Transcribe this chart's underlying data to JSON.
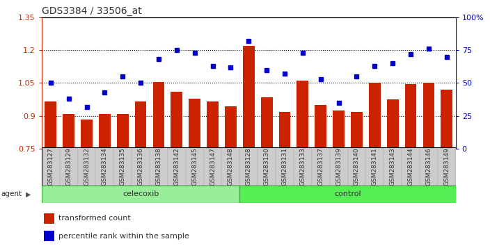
{
  "title": "GDS3384 / 33506_at",
  "samples": [
    "GSM283127",
    "GSM283129",
    "GSM283132",
    "GSM283134",
    "GSM283135",
    "GSM283136",
    "GSM283138",
    "GSM283142",
    "GSM283145",
    "GSM283147",
    "GSM283148",
    "GSM283128",
    "GSM283130",
    "GSM283131",
    "GSM283133",
    "GSM283137",
    "GSM283139",
    "GSM283140",
    "GSM283141",
    "GSM283143",
    "GSM283144",
    "GSM283146",
    "GSM283149"
  ],
  "bar_values": [
    0.965,
    0.91,
    0.885,
    0.91,
    0.91,
    0.965,
    1.055,
    1.01,
    0.98,
    0.965,
    0.945,
    1.22,
    0.985,
    0.92,
    1.06,
    0.95,
    0.925,
    0.92,
    1.05,
    0.975,
    1.045,
    1.05,
    1.02
  ],
  "percentile_values": [
    50,
    38,
    32,
    43,
    55,
    50,
    68,
    75,
    73,
    63,
    62,
    82,
    60,
    57,
    73,
    53,
    35,
    55,
    63,
    65,
    72,
    76,
    70
  ],
  "celecoxib_count": 11,
  "control_count": 12,
  "ylim_left": [
    0.75,
    1.35
  ],
  "ylim_right": [
    0,
    100
  ],
  "yticks_left": [
    0.75,
    0.9,
    1.05,
    1.2,
    1.35
  ],
  "ytick_labels_left": [
    "0.75",
    "0.9",
    "1.05",
    "1.2",
    "1.35"
  ],
  "yticks_right": [
    0,
    25,
    50,
    75,
    100
  ],
  "ytick_labels_right": [
    "0",
    "25",
    "50",
    "75",
    "100%"
  ],
  "hlines": [
    0.9,
    1.05,
    1.2
  ],
  "bar_color": "#CC2200",
  "dot_color": "#0000CC",
  "celecoxib_color": "#99EE99",
  "control_color": "#55EE55",
  "agent_box_edge": "#33AA33"
}
